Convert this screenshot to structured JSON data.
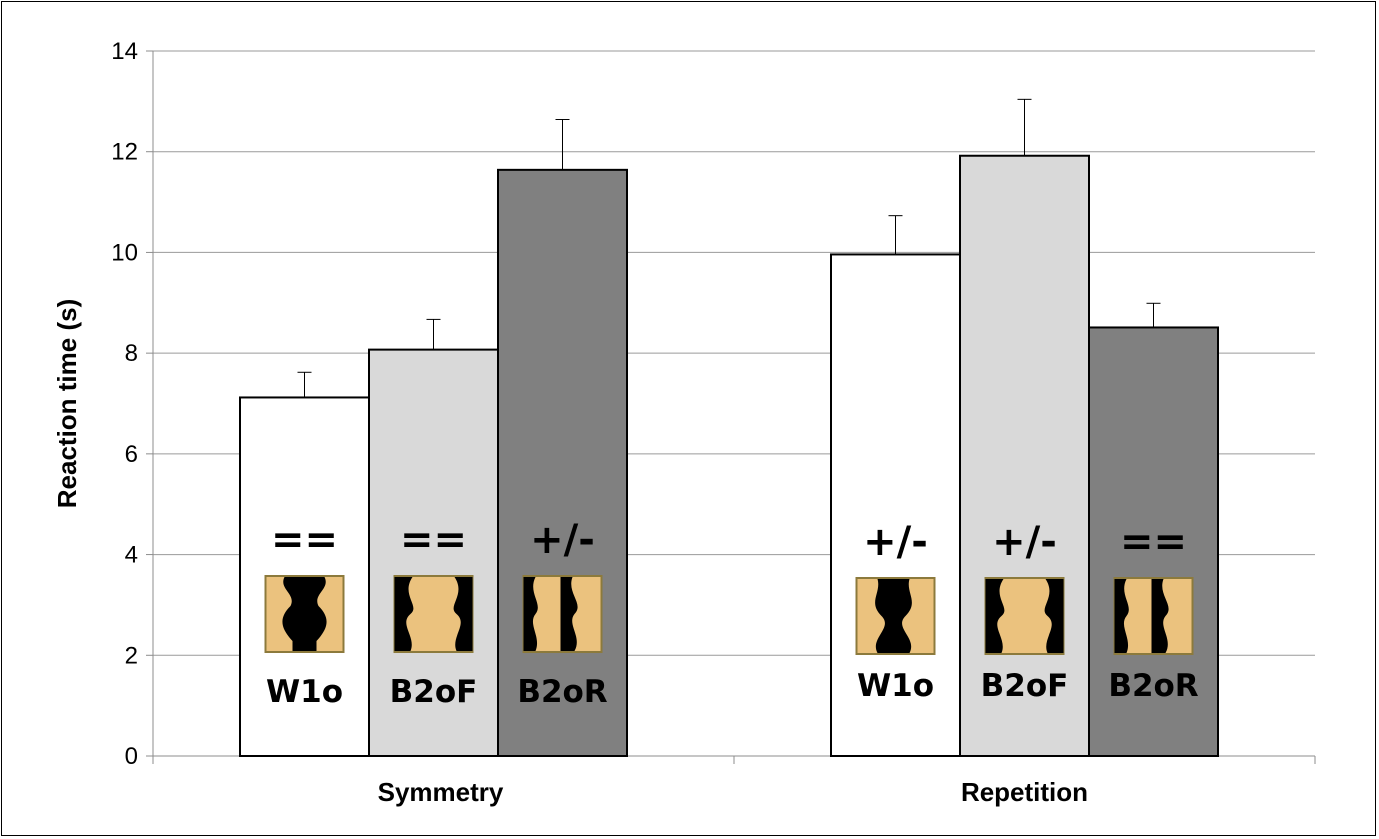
{
  "chart_data": {
    "type": "bar",
    "ylabel": "Reaction time (s)",
    "xlabel": "",
    "ylim": [
      0,
      14
    ],
    "yticks": [
      0,
      2,
      4,
      6,
      8,
      10,
      12,
      14
    ],
    "grid": true,
    "categories": [
      "Symmetry",
      "Repetition"
    ],
    "bar_colors": [
      "#ffffff",
      "#d9d9d9",
      "#808080"
    ],
    "thumbnail_bg": "#ebc27e",
    "thumbnail_border": "#8c7a3c",
    "groups": [
      {
        "name": "Symmetry",
        "bars": [
          {
            "condition": "W1o",
            "value": 7.12,
            "error": 0.5,
            "symbol": "==",
            "thumb": "w1o"
          },
          {
            "condition": "B2oF",
            "value": 8.07,
            "error": 0.6,
            "symbol": "==",
            "thumb": "b2of"
          },
          {
            "condition": "B2oR",
            "value": 11.64,
            "error": 1.0,
            "symbol": "+/-",
            "thumb": "b2or"
          }
        ]
      },
      {
        "name": "Repetition",
        "bars": [
          {
            "condition": "W1o",
            "value": 9.96,
            "error": 0.77,
            "symbol": "+/-",
            "thumb": "w1o-rep"
          },
          {
            "condition": "B2oF",
            "value": 11.92,
            "error": 1.12,
            "symbol": "+/-",
            "thumb": "b2of-rep"
          },
          {
            "condition": "B2oR",
            "value": 8.51,
            "error": 0.48,
            "symbol": "==",
            "thumb": "b2or-rep"
          }
        ]
      }
    ]
  }
}
